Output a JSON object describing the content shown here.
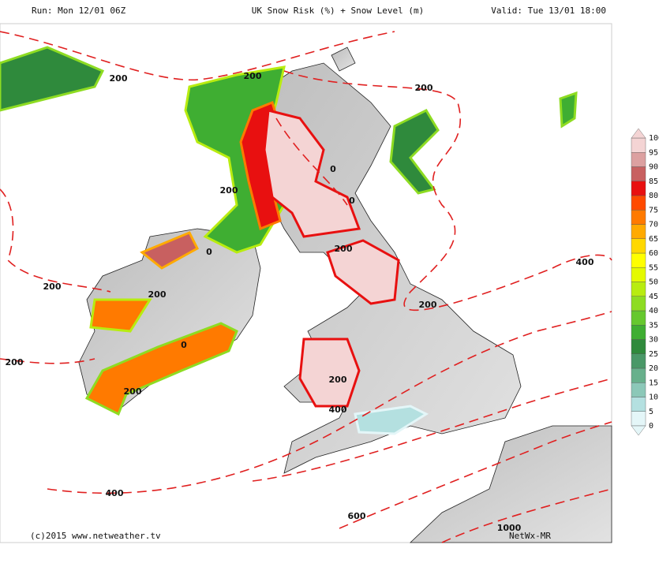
{
  "header": {
    "run": "Run: Mon 12/01 06Z",
    "title": "UK Snow Risk (%) + Snow Level (m)",
    "valid": "Valid: Tue 13/01 18:00"
  },
  "contour_labels": [
    "200",
    "200",
    "200",
    "0",
    "0",
    "200",
    "200",
    "0",
    "400",
    "200",
    "200",
    "200",
    "0",
    "200",
    "200",
    "200",
    "400",
    "400",
    "600",
    "1000"
  ],
  "colorbar": {
    "ticks": [
      0,
      5,
      10,
      15,
      20,
      25,
      30,
      35,
      40,
      45,
      50,
      55,
      60,
      65,
      70,
      75,
      80,
      85,
      90,
      95,
      100
    ],
    "colors": [
      "#e4f6f8",
      "#b4e0e0",
      "#8cc8b8",
      "#68b08c",
      "#4a9868",
      "#2f8a3c",
      "#3fae32",
      "#66c82e",
      "#8edc22",
      "#b8ec10",
      "#e4fa00",
      "#ffff00",
      "#ffd800",
      "#ffaa00",
      "#ff7a00",
      "#ff4a00",
      "#e81010",
      "#c86060",
      "#dca0a0",
      "#f4d4d4"
    ]
  },
  "footer": {
    "copyright": "(c)2015 www.netweather.tv",
    "model": "NetWx-MR"
  }
}
